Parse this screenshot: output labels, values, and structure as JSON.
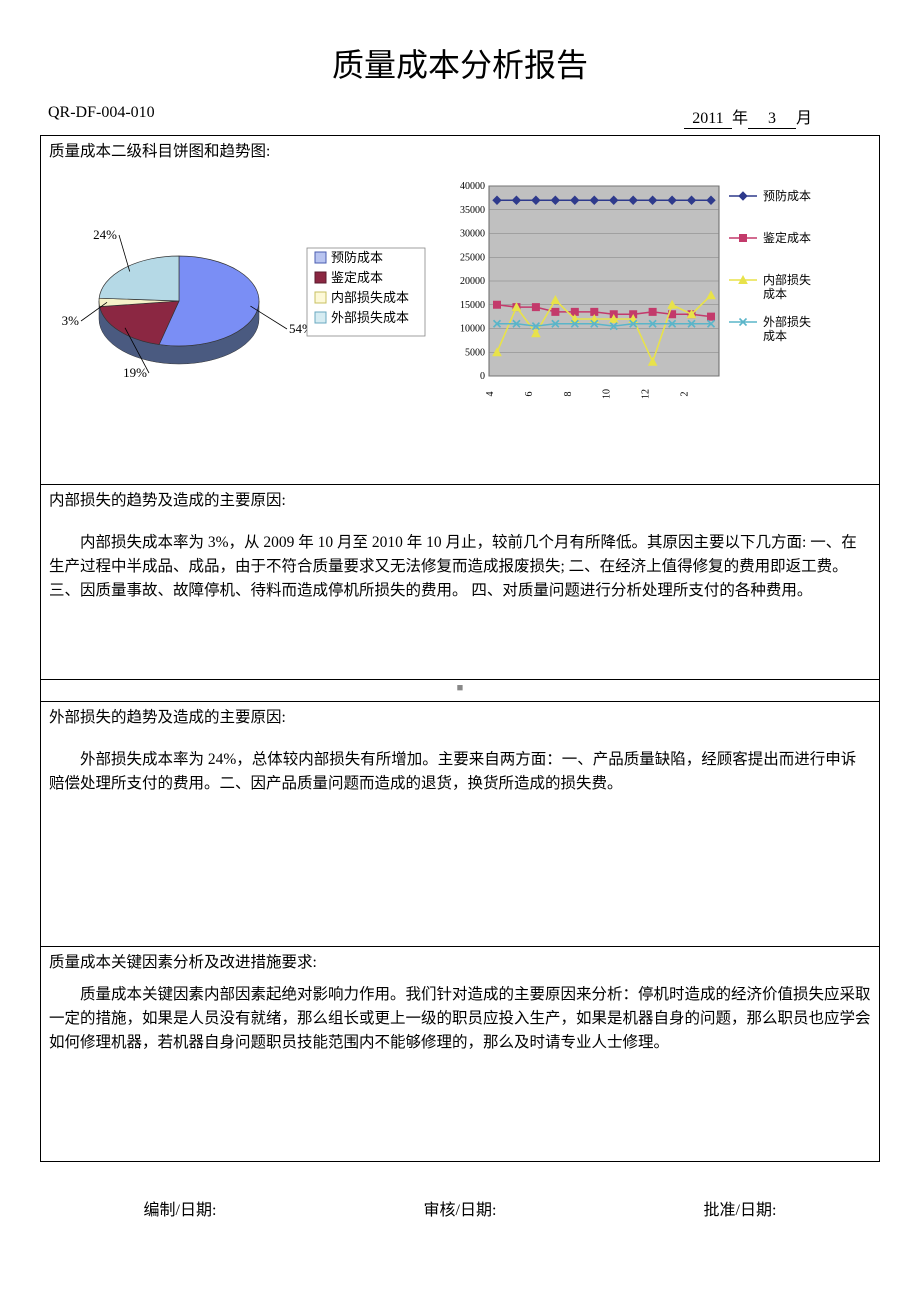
{
  "title": "质量成本分析报告",
  "doc_no": "QR-DF-004-010",
  "year": "2011",
  "year_label": "年",
  "month": "3",
  "month_label": "月",
  "footer": {
    "make": "编制/日期:",
    "review": "审核/日期:",
    "approve": "批准/日期:"
  },
  "small_mark": "■",
  "sections": {
    "charts_title": "质量成本二级科目饼图和趋势图:",
    "internal": {
      "title": "内部损失的趋势及造成的主要原因:",
      "body": "内部损失成本率为 3%，从 2009 年 10 月至 2010 年 10 月止，较前几个月有所降低。其原因主要以下几方面: 一、在生产过程中半成品、成品，由于不符合质量要求又无法修复而造成报废损失; 二、在经济上值得修复的费用即返工费。三、因质量事故、故障停机、待料而造成停机所损失的费用。 四、对质量问题进行分析处理所支付的各种费用。"
    },
    "external": {
      "title": "外部损失的趋势及造成的主要原因:",
      "body": "外部损失成本率为 24%，总体较内部损失有所增加。主要来自两方面：一、产品质量缺陷，经顾客提出而进行申诉赔偿处理所支付的费用。二、因产品质量问题而造成的退货，换货所造成的损失费。"
    },
    "key": {
      "title": "质量成本关键因素分析及改进措施要求:",
      "body": "质量成本关键因素内部因素起绝对影响力作用。我们针对造成的主要原因来分析：停机时造成的经济价值损失应采取一定的措施，如果是人员没有就绪，那么组长或更上一级的职员应投入生产，如果是机器自身的问题，那么职员也应学会如何修理机器，若机器自身问题职员技能范围内不能够修理的，那么及时请专业人士修理。"
    }
  },
  "pie": {
    "slices": [
      {
        "label": "预防成本",
        "pct": 54,
        "color": "#7a8ef5",
        "legend_fill": "#b8c4f0",
        "legend_border": "#4a5db0"
      },
      {
        "label": "鉴定成本",
        "pct": 19,
        "color": "#8b2742",
        "legend_fill": "#8b2742",
        "legend_border": "#5a1a2c"
      },
      {
        "label": "内部损失成本",
        "pct": 3,
        "color": "#f5f2c8",
        "legend_fill": "#fdf9d8",
        "legend_border": "#c8c060"
      },
      {
        "label": "外部损失成本",
        "pct": 24,
        "color": "#b5d9e6",
        "legend_fill": "#d6ecf2",
        "legend_border": "#6aa8c0"
      }
    ],
    "label_fontsize": 13,
    "legend_fontsize": 13,
    "side_color": "#4a5a80"
  },
  "line": {
    "ylim": [
      0,
      40000
    ],
    "ytick_step": 5000,
    "x_categories": [
      "4",
      "6",
      "8",
      "10",
      "12",
      "2"
    ],
    "x_points": 12,
    "plot_bg": "#c0c0c0",
    "grid_color": "#808080",
    "axis_fontsize": 10,
    "legend_fontsize": 12,
    "series": [
      {
        "name": "预防成本",
        "color": "#2e3a8c",
        "marker": "diamond",
        "values": [
          37000,
          37000,
          37000,
          37000,
          37000,
          37000,
          37000,
          37000,
          37000,
          37000,
          37000,
          37000
        ]
      },
      {
        "name": "鉴定成本",
        "color": "#c33a6b",
        "marker": "square",
        "values": [
          15000,
          14500,
          14500,
          13500,
          13500,
          13500,
          13000,
          13000,
          13500,
          13000,
          13000,
          12500
        ]
      },
      {
        "name": "内部损失\n成本",
        "color": "#e8e24a",
        "marker": "triangle",
        "values": [
          5000,
          14500,
          9000,
          16000,
          12000,
          12000,
          12000,
          12000,
          3000,
          15000,
          13000,
          17000
        ]
      },
      {
        "name": "外部损失\n成本",
        "color": "#5ab5c9",
        "marker": "x",
        "values": [
          11000,
          11000,
          10500,
          11000,
          11000,
          11000,
          10500,
          11000,
          11000,
          11000,
          11000,
          11000
        ]
      }
    ]
  }
}
